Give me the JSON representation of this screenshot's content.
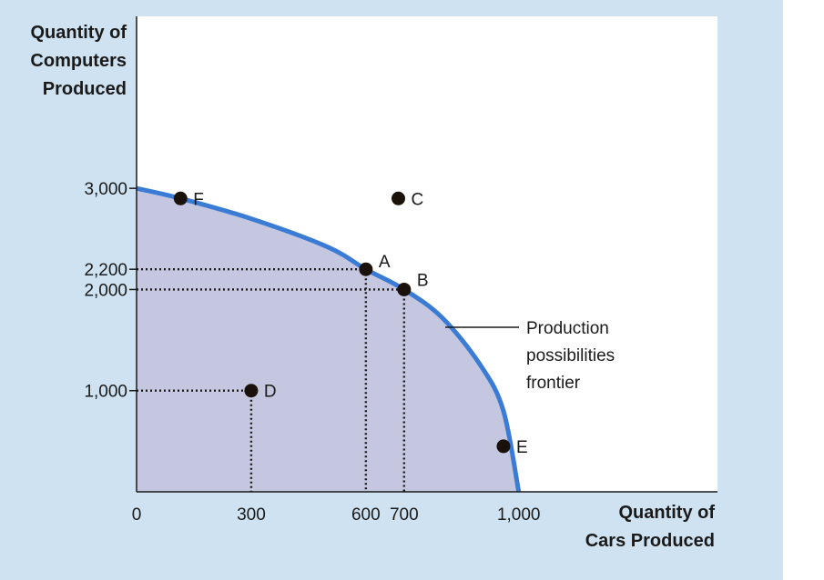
{
  "chart_data": {
    "type": "scatter",
    "xlabel_lines": [
      "Quantity of",
      "Cars Produced"
    ],
    "ylabel_lines": [
      "Quantity of",
      "Computers",
      "Produced"
    ],
    "xlim": [
      0,
      1520
    ],
    "ylim": [
      0,
      4700
    ],
    "x_ticks": [
      {
        "value": 0,
        "label": "0"
      },
      {
        "value": 300,
        "label": "300"
      },
      {
        "value": 600,
        "label": "600"
      },
      {
        "value": 700,
        "label": "700"
      },
      {
        "value": 1000,
        "label": "1,000"
      }
    ],
    "y_ticks": [
      {
        "value": 1000,
        "label": "1,000"
      },
      {
        "value": 2000,
        "label": "2,000"
      },
      {
        "value": 2200,
        "label": "2,200"
      },
      {
        "value": 3000,
        "label": "3,000"
      }
    ],
    "frontier": {
      "name": "Production possibilities frontier",
      "label_lines": [
        "Production",
        "possibilities",
        "frontier"
      ],
      "points": [
        [
          0,
          3000
        ],
        [
          115,
          2900
        ],
        [
          300,
          2700
        ],
        [
          500,
          2420
        ],
        [
          600,
          2200
        ],
        [
          700,
          2000
        ],
        [
          800,
          1720
        ],
        [
          900,
          1250
        ],
        [
          960,
          800
        ],
        [
          1000,
          0
        ]
      ]
    },
    "points": [
      {
        "label": "F",
        "x": 115,
        "y": 2900
      },
      {
        "label": "C",
        "x": 685,
        "y": 2900
      },
      {
        "label": "A",
        "x": 600,
        "y": 2200
      },
      {
        "label": "B",
        "x": 700,
        "y": 2000
      },
      {
        "label": "D",
        "x": 300,
        "y": 1000
      },
      {
        "label": "E",
        "x": 960,
        "y": 450
      }
    ],
    "dotted_guides": [
      {
        "x": 600,
        "y": 2200
      },
      {
        "x": 700,
        "y": 2000
      },
      {
        "x": 300,
        "y": 1000
      }
    ],
    "colors": {
      "background": "#cfe2f1",
      "plot_bg": "#ffffff",
      "feasible_fill": "#c4c7df",
      "frontier": "#3a7bd5",
      "points": "#1a120a"
    }
  }
}
